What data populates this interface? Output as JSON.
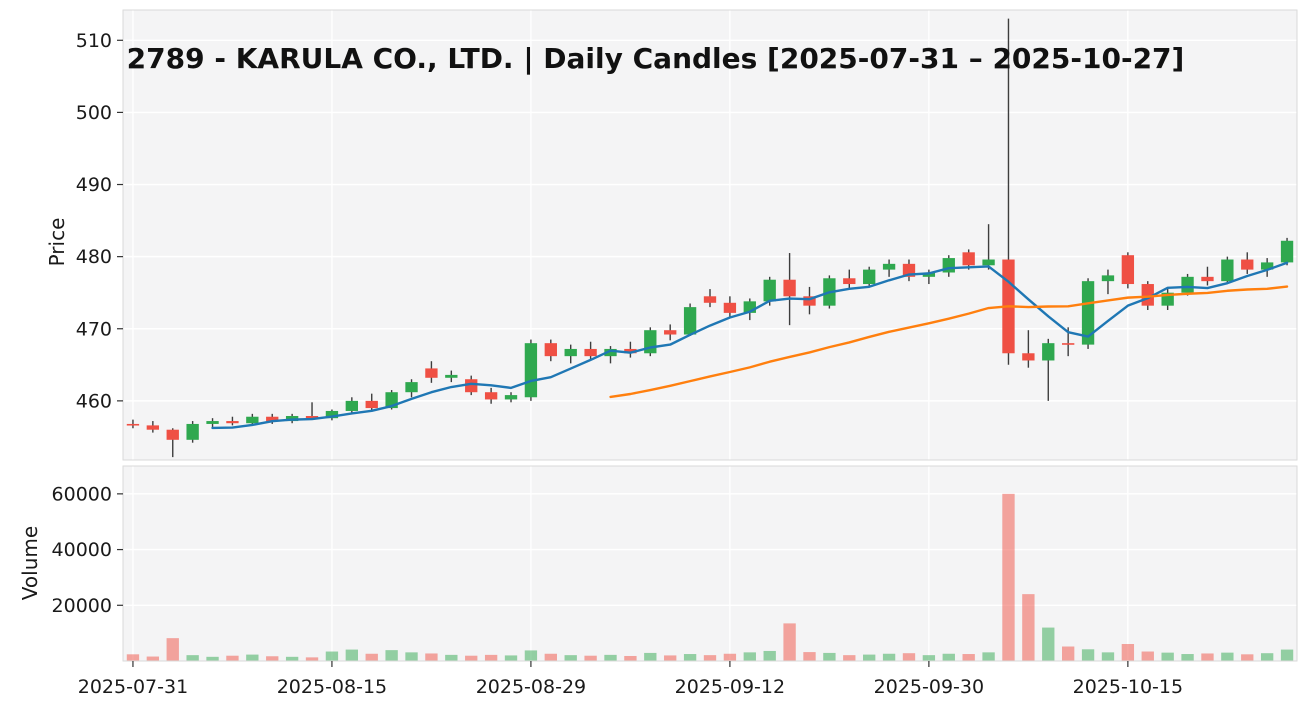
{
  "chart": {
    "title": "2789 - KARULA CO., LTD. | Daily Candles [2025-07-31 – 2025-10-27]",
    "price_axis_label": "Price",
    "volume_axis_label": "Volume"
  },
  "chart_data": {
    "type": "candlestick",
    "title": "2789 - KARULA CO., LTD. | Daily Candles [2025-07-31 – 2025-10-27]",
    "xlabel": "",
    "ylabel_price": "Price",
    "ylabel_volume": "Volume",
    "x_tick_labels": [
      "2025-07-31",
      "2025-08-15",
      "2025-08-29",
      "2025-09-12",
      "2025-09-30",
      "2025-10-15"
    ],
    "price_ticks": [
      460,
      470,
      480,
      490,
      500,
      510
    ],
    "price_ylim": [
      451.8,
      514.2
    ],
    "volume_ticks": [
      20000,
      40000,
      60000
    ],
    "volume_ylim": [
      0,
      70000
    ],
    "grid": true,
    "legend": "none",
    "moving_averages": [
      {
        "name": "MA5",
        "window": 5,
        "color": "#1f77b4"
      },
      {
        "name": "MA25",
        "window": 25,
        "color": "#ff7f0e"
      }
    ],
    "colors": {
      "up": "#2fa84f",
      "down": "#ef5044",
      "wick": "#3d3d3d",
      "grid": "#ffffff",
      "panel_bg": "#f4f4f5",
      "border": "#d9d9d9",
      "tick": "#333333"
    },
    "columns": [
      "date",
      "open",
      "high",
      "low",
      "close",
      "volume"
    ],
    "candles": [
      [
        "2025-07-31",
        456.8,
        457.4,
        456.2,
        456.6,
        2400
      ],
      [
        "2025-08-01",
        456.6,
        457.2,
        455.6,
        456.0,
        1600
      ],
      [
        "2025-08-04",
        456.0,
        456.2,
        452.2,
        454.6,
        8200
      ],
      [
        "2025-08-05",
        454.6,
        457.2,
        454.2,
        456.8,
        2100
      ],
      [
        "2025-08-06",
        456.8,
        457.6,
        456.2,
        457.2,
        1500
      ],
      [
        "2025-08-07",
        457.2,
        457.8,
        456.6,
        456.9,
        1900
      ],
      [
        "2025-08-08",
        456.9,
        458.2,
        456.6,
        457.8,
        2300
      ],
      [
        "2025-08-12",
        457.8,
        458.2,
        456.8,
        457.2,
        1700
      ],
      [
        "2025-08-13",
        457.2,
        458.2,
        456.9,
        457.9,
        1500
      ],
      [
        "2025-08-14",
        457.9,
        459.8,
        457.4,
        457.6,
        1300
      ],
      [
        "2025-08-15",
        457.6,
        458.8,
        457.3,
        458.6,
        3400
      ],
      [
        "2025-08-18",
        458.6,
        460.5,
        458.2,
        460.0,
        4100
      ],
      [
        "2025-08-19",
        460.0,
        461.0,
        458.5,
        459.0,
        2600
      ],
      [
        "2025-08-20",
        459.0,
        461.5,
        458.8,
        461.2,
        3900
      ],
      [
        "2025-08-21",
        461.2,
        463.0,
        460.5,
        462.6,
        3100
      ],
      [
        "2025-08-22",
        464.5,
        465.5,
        462.5,
        463.2,
        2700
      ],
      [
        "2025-08-25",
        463.2,
        464.2,
        462.6,
        463.6,
        2200
      ],
      [
        "2025-08-26",
        463.0,
        463.5,
        460.8,
        461.2,
        1900
      ],
      [
        "2025-08-27",
        461.2,
        461.8,
        459.6,
        460.2,
        2200
      ],
      [
        "2025-08-28",
        460.2,
        461.2,
        459.8,
        460.8,
        2000
      ],
      [
        "2025-08-29",
        460.5,
        468.5,
        460.0,
        468.0,
        3800
      ],
      [
        "2025-09-01",
        468.0,
        468.5,
        465.5,
        466.2,
        2600
      ],
      [
        "2025-09-02",
        466.2,
        467.8,
        465.2,
        467.2,
        2100
      ],
      [
        "2025-09-03",
        467.2,
        468.2,
        465.8,
        466.2,
        1900
      ],
      [
        "2025-09-04",
        466.2,
        467.6,
        465.2,
        467.2,
        2200
      ],
      [
        "2025-09-05",
        467.2,
        468.2,
        466.0,
        466.6,
        1800
      ],
      [
        "2025-09-08",
        466.6,
        470.2,
        466.2,
        469.8,
        2900
      ],
      [
        "2025-09-09",
        469.8,
        470.6,
        468.4,
        469.2,
        2000
      ],
      [
        "2025-09-10",
        469.2,
        473.5,
        469.0,
        473.0,
        2500
      ],
      [
        "2025-09-11",
        474.5,
        475.5,
        473.0,
        473.6,
        2100
      ],
      [
        "2025-09-12",
        473.6,
        474.5,
        471.5,
        472.2,
        2600
      ],
      [
        "2025-09-16",
        472.2,
        474.2,
        471.2,
        473.8,
        3100
      ],
      [
        "2025-09-17",
        473.8,
        477.2,
        473.2,
        476.8,
        3600
      ],
      [
        "2025-09-18",
        476.8,
        480.5,
        470.5,
        474.5,
        13500
      ],
      [
        "2025-09-19",
        474.5,
        475.8,
        472.0,
        473.2,
        3200
      ],
      [
        "2025-09-22",
        473.2,
        477.4,
        472.8,
        477.0,
        2900
      ],
      [
        "2025-09-24",
        477.0,
        478.2,
        475.6,
        476.2,
        2100
      ],
      [
        "2025-09-25",
        476.2,
        478.6,
        475.8,
        478.2,
        2300
      ],
      [
        "2025-09-26",
        478.2,
        479.6,
        477.2,
        479.0,
        2600
      ],
      [
        "2025-09-29",
        479.0,
        479.6,
        476.6,
        477.2,
        2800
      ],
      [
        "2025-09-30",
        477.2,
        478.2,
        476.2,
        477.8,
        2100
      ],
      [
        "2025-10-01",
        477.8,
        480.2,
        477.2,
        479.8,
        2600
      ],
      [
        "2025-10-02",
        480.6,
        481.0,
        478.2,
        478.8,
        2500
      ],
      [
        "2025-10-03",
        478.8,
        484.5,
        478.2,
        479.6,
        3100
      ],
      [
        "2025-10-06",
        479.6,
        513.0,
        465.0,
        466.6,
        60000
      ],
      [
        "2025-10-07",
        466.6,
        469.8,
        464.6,
        465.6,
        24000
      ],
      [
        "2025-10-08",
        465.6,
        468.6,
        460.0,
        468.0,
        12000
      ],
      [
        "2025-10-09",
        468.0,
        470.2,
        466.2,
        467.8,
        5200
      ],
      [
        "2025-10-10",
        467.8,
        477.0,
        467.2,
        476.6,
        4200
      ],
      [
        "2025-10-14",
        476.6,
        478.2,
        474.8,
        477.4,
        3100
      ],
      [
        "2025-10-15",
        480.2,
        480.6,
        475.6,
        476.2,
        6100
      ],
      [
        "2025-10-16",
        476.2,
        476.6,
        472.6,
        473.2,
        3400
      ],
      [
        "2025-10-17",
        473.2,
        475.6,
        472.6,
        475.0,
        3000
      ],
      [
        "2025-10-20",
        475.0,
        477.6,
        474.6,
        477.2,
        2500
      ],
      [
        "2025-10-21",
        477.2,
        478.6,
        476.0,
        476.6,
        2700
      ],
      [
        "2025-10-22",
        476.6,
        480.0,
        476.2,
        479.6,
        3000
      ],
      [
        "2025-10-23",
        479.6,
        480.6,
        477.6,
        478.2,
        2400
      ],
      [
        "2025-10-24",
        478.2,
        479.8,
        477.2,
        479.2,
        2800
      ],
      [
        "2025-10-27",
        479.2,
        482.6,
        478.8,
        482.2,
        4100
      ]
    ]
  }
}
